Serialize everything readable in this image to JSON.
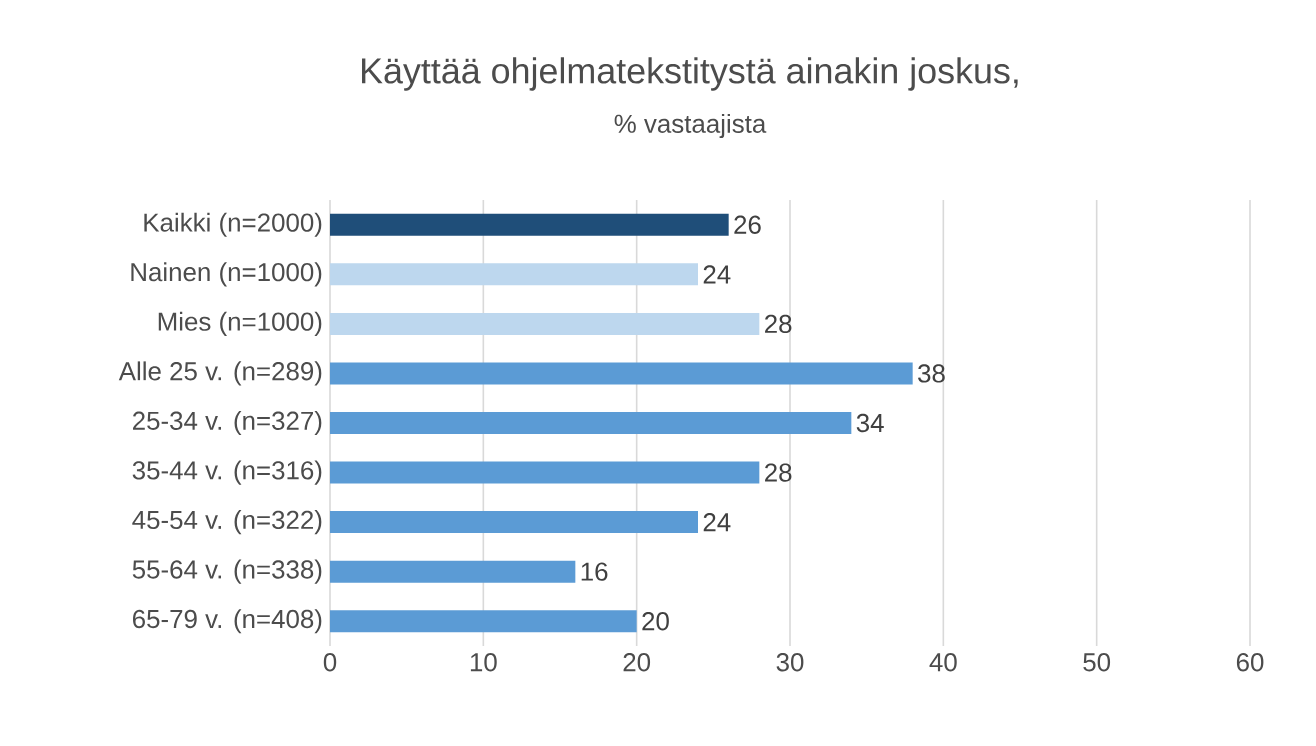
{
  "chart_data": {
    "type": "bar",
    "orientation": "horizontal",
    "title": "Käyttää ohjelmatekstitystä ainakin joskus,",
    "subtitle": "% vastaajista",
    "categories": [
      "Kaikki (n=2000)",
      "Nainen (n=1000)",
      "Mies (n=1000)",
      "Alle 25 v. (n=289)",
      "25-34 v. (n=327)",
      "35-44 v. (n=316)",
      "45-54 v. (n=322)",
      "55-64 v. (n=338)",
      "65-79 v. (n=408)"
    ],
    "values": [
      26,
      24,
      28,
      38,
      34,
      28,
      24,
      16,
      20
    ],
    "colors": [
      "#1f4e79",
      "#bdd7ee",
      "#bdd7ee",
      "#5b9bd5",
      "#5b9bd5",
      "#5b9bd5",
      "#5b9bd5",
      "#5b9bd5",
      "#5b9bd5"
    ],
    "xlim": [
      0,
      60
    ],
    "xticks": [
      0,
      10,
      20,
      30,
      40,
      50,
      60
    ],
    "grid": "x",
    "data_labels": true
  }
}
